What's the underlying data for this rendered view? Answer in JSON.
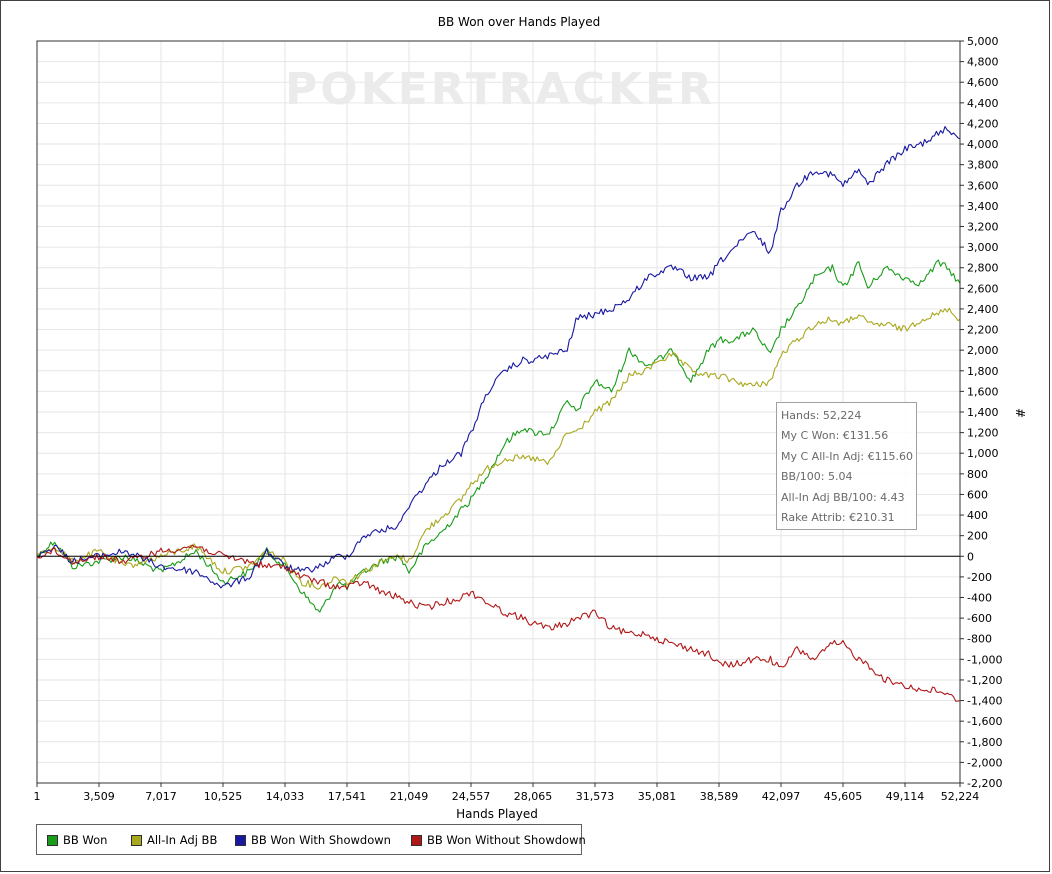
{
  "chart_data": {
    "type": "line",
    "title": "BB Won over Hands Played",
    "xlabel": "Hands Played",
    "ylabel": "#",
    "x_ticks": [
      "1",
      "3,509",
      "7,017",
      "10,525",
      "14,033",
      "17,541",
      "21,049",
      "24,557",
      "28,065",
      "31,573",
      "35,081",
      "38,589",
      "42,097",
      "45,605",
      "49,114",
      "52,224"
    ],
    "y_ticks": [
      "5,000",
      "4,800",
      "4,600",
      "4,400",
      "4,200",
      "4,000",
      "3,800",
      "3,600",
      "3,400",
      "3,200",
      "3,000",
      "2,800",
      "2,600",
      "2,400",
      "2,200",
      "2,000",
      "1,800",
      "1,600",
      "1,400",
      "1,200",
      "1,000",
      "800",
      "600",
      "400",
      "200",
      "0",
      "-200",
      "-400",
      "-600",
      "-800",
      "-1,000",
      "-1,200",
      "-1,400",
      "-1,600",
      "-1,800",
      "-2,000",
      "-2,200"
    ],
    "xlim": [
      1,
      52224
    ],
    "ylim": [
      -2200,
      5000
    ],
    "grid": true,
    "watermark": "POKERTRACKER",
    "series": [
      {
        "name": "BB Won",
        "color": "#1a9c1a",
        "x": [
          1,
          1000,
          2000,
          3500,
          5000,
          7017,
          9000,
          10525,
          12000,
          13000,
          14033,
          15000,
          16000,
          17000,
          17541,
          18500,
          19500,
          20500,
          21049,
          22000,
          23000,
          24000,
          24557,
          25500,
          26500,
          27500,
          28065,
          29000,
          30000,
          30500,
          31573,
          32500,
          33500,
          34500,
          35081,
          36000,
          37000,
          38000,
          38589,
          39500,
          40500,
          41500,
          42097,
          43000,
          44000,
          45000,
          45605,
          46500,
          47000,
          48000,
          49114,
          50000,
          51000,
          51500,
          52224
        ],
        "y": [
          0,
          150,
          -100,
          -50,
          0,
          -150,
          50,
          -250,
          -150,
          50,
          -100,
          -350,
          -550,
          -250,
          -300,
          -150,
          -50,
          0,
          -150,
          100,
          250,
          450,
          550,
          800,
          1100,
          1250,
          1200,
          1200,
          1500,
          1400,
          1700,
          1600,
          2000,
          1850,
          1900,
          2000,
          1700,
          2000,
          2100,
          2100,
          2200,
          1950,
          2200,
          2400,
          2700,
          2800,
          2600,
          2850,
          2600,
          2800,
          2700,
          2650,
          2850,
          2800,
          2650
        ]
      },
      {
        "name": "All-In Adj BB",
        "color": "#a8a81e",
        "x": [
          1,
          1000,
          2000,
          3500,
          5000,
          7017,
          9000,
          10525,
          12000,
          13000,
          14033,
          15000,
          16000,
          17000,
          17541,
          18500,
          19500,
          20500,
          21049,
          22000,
          23000,
          24000,
          24557,
          25500,
          26500,
          27500,
          28065,
          29000,
          30000,
          30500,
          31573,
          32500,
          33500,
          34500,
          35081,
          36000,
          37000,
          38000,
          38589,
          39500,
          40500,
          41500,
          42097,
          43000,
          44000,
          45000,
          45605,
          46500,
          47000,
          48000,
          49114,
          50000,
          51000,
          51500,
          52224
        ],
        "y": [
          0,
          100,
          -50,
          50,
          -100,
          0,
          100,
          -150,
          -100,
          50,
          -50,
          -250,
          -300,
          -200,
          -250,
          -150,
          -50,
          0,
          -50,
          250,
          400,
          550,
          700,
          850,
          950,
          950,
          950,
          900,
          1200,
          1200,
          1400,
          1500,
          1750,
          1800,
          1900,
          1950,
          1800,
          1750,
          1750,
          1700,
          1650,
          1700,
          1950,
          2100,
          2250,
          2300,
          2250,
          2350,
          2250,
          2250,
          2200,
          2300,
          2350,
          2400,
          2300
        ]
      },
      {
        "name": "BB Won With Showdown",
        "color": "#1818a0",
        "x": [
          1,
          1000,
          2000,
          3500,
          5000,
          7017,
          9000,
          10525,
          12000,
          13000,
          14033,
          15000,
          16000,
          17000,
          17541,
          18500,
          19500,
          20500,
          21049,
          22000,
          23000,
          24000,
          24557,
          25500,
          26500,
          27500,
          28065,
          29000,
          30000,
          30500,
          31573,
          32500,
          33500,
          34500,
          35081,
          36000,
          37000,
          38000,
          38589,
          39500,
          40500,
          41500,
          42097,
          43000,
          44000,
          45000,
          45605,
          46500,
          47000,
          48000,
          49114,
          50000,
          51000,
          51500,
          52224
        ],
        "y": [
          0,
          100,
          -50,
          0,
          50,
          -100,
          -150,
          -300,
          -200,
          50,
          -100,
          -150,
          -100,
          0,
          0,
          200,
          250,
          300,
          500,
          700,
          900,
          1000,
          1200,
          1600,
          1800,
          1900,
          1900,
          1950,
          2000,
          2300,
          2350,
          2400,
          2500,
          2700,
          2750,
          2800,
          2700,
          2700,
          2850,
          3000,
          3150,
          2950,
          3350,
          3600,
          3750,
          3700,
          3600,
          3750,
          3600,
          3800,
          3950,
          4000,
          4100,
          4150,
          4050
        ]
      },
      {
        "name": "BB Won Without Showdown",
        "color": "#b01818",
        "x": [
          1,
          1000,
          2000,
          3500,
          5000,
          7017,
          9000,
          10525,
          12000,
          13000,
          14033,
          15000,
          16000,
          17000,
          17541,
          18500,
          19500,
          20500,
          21049,
          22000,
          23000,
          24000,
          24557,
          25500,
          26500,
          27500,
          28065,
          29000,
          30000,
          30500,
          31573,
          32500,
          33500,
          34500,
          35081,
          36000,
          37000,
          38000,
          38589,
          39500,
          40500,
          41500,
          42097,
          43000,
          44000,
          45000,
          45605,
          46500,
          47000,
          48000,
          49114,
          50000,
          51000,
          51500,
          52224
        ],
        "y": [
          0,
          50,
          -50,
          0,
          -50,
          50,
          100,
          0,
          -50,
          -100,
          -100,
          -200,
          -250,
          -300,
          -300,
          -250,
          -350,
          -400,
          -450,
          -500,
          -450,
          -400,
          -350,
          -450,
          -550,
          -600,
          -650,
          -700,
          -650,
          -600,
          -550,
          -700,
          -750,
          -750,
          -800,
          -850,
          -900,
          -950,
          -1050,
          -1050,
          -1000,
          -1000,
          -1100,
          -900,
          -1000,
          -850,
          -850,
          -1000,
          -1050,
          -1200,
          -1250,
          -1300,
          -1300,
          -1350,
          -1400
        ]
      }
    ]
  },
  "stats": [
    "Hands: 52,224",
    "My C Won: €131.56",
    "My C All-In Adj: €115.60",
    "BB/100: 5.04",
    "All-In Adj BB/100: 4.43",
    "Rake Attrib: €210.31"
  ],
  "legend": [
    {
      "label": "BB Won",
      "color": "#1a9c1a"
    },
    {
      "label": "All-In Adj BB",
      "color": "#a8a81e"
    },
    {
      "label": "BB Won With Showdown",
      "color": "#1818a0"
    },
    {
      "label": "BB Won Without Showdown",
      "color": "#b01818"
    }
  ]
}
